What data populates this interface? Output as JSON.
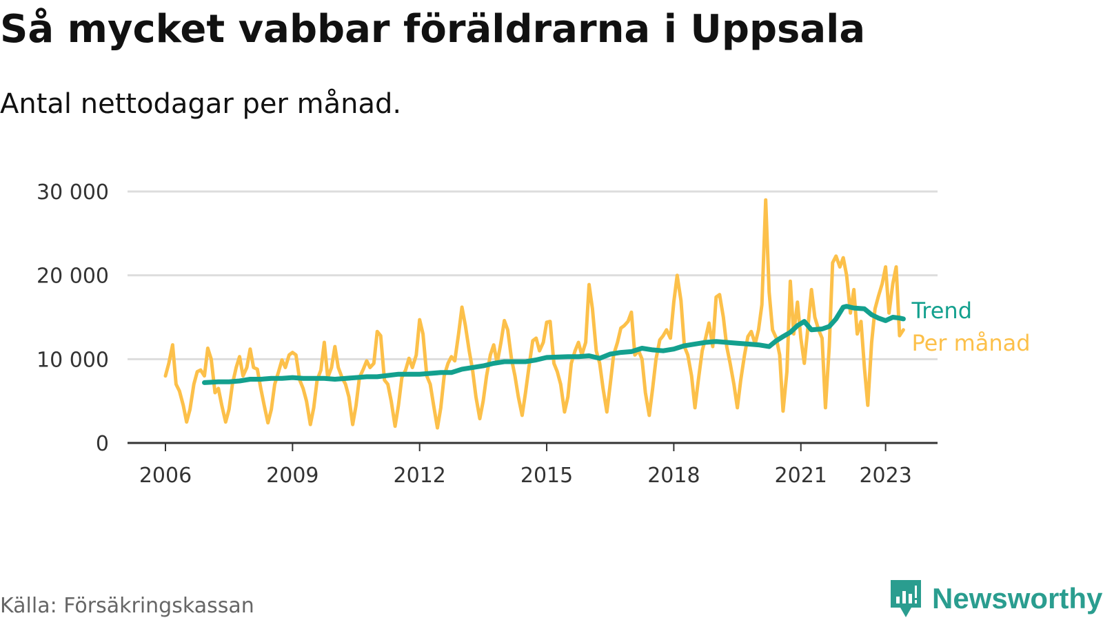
{
  "title": "Så mycket vabbar föräldrarna i Uppsala",
  "subtitle": "Antal nettodagar per månad.",
  "source": "Källa: Försäkringskassan",
  "brand": "Newsworthy",
  "chart_data": {
    "type": "line",
    "title": "Så mycket vabbar föräldrarna i Uppsala",
    "subtitle": "Antal nettodagar per månad.",
    "xlabel": "",
    "ylabel": "",
    "xlim": [
      2006,
      2024.3
    ],
    "ylim": [
      0,
      30000
    ],
    "y_ticks": [
      0,
      10000,
      20000,
      30000
    ],
    "y_tick_labels": [
      "0",
      "10 000",
      "20 000",
      "30 000"
    ],
    "x_ticks": [
      2006,
      2009,
      2012,
      2015,
      2018,
      2021,
      2023
    ],
    "x_tick_labels": [
      "2006",
      "2009",
      "2012",
      "2015",
      "2018",
      "2021",
      "2023"
    ],
    "grid": true,
    "colors": {
      "per_manad": "#fcc04a",
      "trend": "#13a08e",
      "grid": "#dddddd",
      "axis": "#333333"
    },
    "series": [
      {
        "name": "Per månad",
        "color": "#fcc04a",
        "x": [
          2006.0,
          2006.08,
          2006.17,
          2006.25,
          2006.33,
          2006.42,
          2006.5,
          2006.58,
          2006.67,
          2006.75,
          2006.83,
          2006.92,
          2007.0,
          2007.08,
          2007.17,
          2007.25,
          2007.33,
          2007.42,
          2007.5,
          2007.58,
          2007.67,
          2007.75,
          2007.83,
          2007.92,
          2008.0,
          2008.08,
          2008.17,
          2008.25,
          2008.33,
          2008.42,
          2008.5,
          2008.58,
          2008.67,
          2008.75,
          2008.83,
          2008.92,
          2009.0,
          2009.08,
          2009.17,
          2009.25,
          2009.33,
          2009.42,
          2009.5,
          2009.58,
          2009.67,
          2009.75,
          2009.83,
          2009.92,
          2010.0,
          2010.08,
          2010.17,
          2010.25,
          2010.33,
          2010.42,
          2010.5,
          2010.58,
          2010.67,
          2010.75,
          2010.83,
          2010.92,
          2011.0,
          2011.08,
          2011.17,
          2011.25,
          2011.33,
          2011.42,
          2011.5,
          2011.58,
          2011.67,
          2011.75,
          2011.83,
          2011.92,
          2012.0,
          2012.08,
          2012.17,
          2012.25,
          2012.33,
          2012.42,
          2012.5,
          2012.58,
          2012.67,
          2012.75,
          2012.83,
          2012.92,
          2013.0,
          2013.08,
          2013.17,
          2013.25,
          2013.33,
          2013.42,
          2013.5,
          2013.58,
          2013.67,
          2013.75,
          2013.83,
          2013.92,
          2014.0,
          2014.08,
          2014.17,
          2014.25,
          2014.33,
          2014.42,
          2014.5,
          2014.58,
          2014.67,
          2014.75,
          2014.83,
          2014.92,
          2015.0,
          2015.08,
          2015.17,
          2015.25,
          2015.33,
          2015.42,
          2015.5,
          2015.58,
          2015.67,
          2015.75,
          2015.83,
          2015.92,
          2016.0,
          2016.08,
          2016.17,
          2016.25,
          2016.33,
          2016.42,
          2016.5,
          2016.58,
          2016.67,
          2016.75,
          2016.83,
          2016.92,
          2017.0,
          2017.08,
          2017.17,
          2017.25,
          2017.33,
          2017.42,
          2017.5,
          2017.58,
          2017.67,
          2017.75,
          2017.83,
          2017.92,
          2018.0,
          2018.08,
          2018.17,
          2018.25,
          2018.33,
          2018.42,
          2018.5,
          2018.58,
          2018.67,
          2018.75,
          2018.83,
          2018.92,
          2019.0,
          2019.08,
          2019.17,
          2019.25,
          2019.33,
          2019.42,
          2019.5,
          2019.58,
          2019.67,
          2019.75,
          2019.83,
          2019.92,
          2020.0,
          2020.08,
          2020.17,
          2020.25,
          2020.33,
          2020.42,
          2020.5,
          2020.58,
          2020.67,
          2020.75,
          2020.83,
          2020.92,
          2021.0,
          2021.08,
          2021.17,
          2021.25,
          2021.33,
          2021.42,
          2021.5,
          2021.58,
          2021.67,
          2021.75,
          2021.83,
          2021.92,
          2022.0,
          2022.08,
          2022.17,
          2022.25,
          2022.33,
          2022.42,
          2022.5,
          2022.58,
          2022.67,
          2022.75,
          2022.83,
          2022.92,
          2023.0,
          2023.08,
          2023.17,
          2023.25,
          2023.33,
          2023.42
        ],
        "values": [
          8000,
          9500,
          11700,
          7000,
          6200,
          4500,
          2500,
          4000,
          7000,
          8500,
          8700,
          8000,
          11300,
          10000,
          6000,
          6500,
          4500,
          2500,
          4000,
          7000,
          9000,
          10300,
          8000,
          9000,
          11200,
          9000,
          8800,
          6500,
          4500,
          2400,
          4000,
          7000,
          8500,
          9900,
          9000,
          10500,
          10800,
          10500,
          7500,
          6500,
          5000,
          2200,
          4200,
          7500,
          8700,
          12000,
          7800,
          9000,
          11500,
          9000,
          7800,
          7000,
          5500,
          2200,
          4500,
          7800,
          8800,
          9800,
          9000,
          9500,
          13300,
          12800,
          7500,
          7000,
          5000,
          2000,
          4500,
          7800,
          8700,
          10100,
          9000,
          10500,
          14700,
          13000,
          8000,
          7000,
          4500,
          1800,
          4200,
          8000,
          9500,
          10300,
          9800,
          13000,
          16200,
          14000,
          11000,
          8700,
          5500,
          2900,
          5000,
          8000,
          10500,
          11700,
          9500,
          12000,
          14600,
          13500,
          10000,
          8000,
          5500,
          3300,
          6000,
          9000,
          12200,
          12500,
          11000,
          12000,
          14400,
          14500,
          9500,
          8500,
          7000,
          3700,
          5500,
          9500,
          11000,
          12000,
          10500,
          12000,
          18900,
          16000,
          11000,
          9500,
          6500,
          3700,
          7000,
          10500,
          12000,
          13700,
          14000,
          14500,
          15600,
          10500,
          11000,
          10000,
          6000,
          3300,
          6500,
          10000,
          12300,
          12800,
          13500,
          12500,
          16800,
          20000,
          17000,
          11500,
          10500,
          8000,
          4200,
          7500,
          11000,
          12500,
          14300,
          11500,
          17400,
          17700,
          15000,
          11500,
          9500,
          7000,
          4200,
          7500,
          10500,
          12700,
          13300,
          11800,
          13500,
          16500,
          29000,
          18000,
          13500,
          12500,
          10500,
          3800,
          8500,
          19300,
          13000,
          16800,
          12500,
          9500,
          14000,
          18300,
          15000,
          13500,
          12500,
          4200,
          11500,
          21500,
          22300,
          21000,
          22100,
          20000,
          15500,
          18300,
          13000,
          14500,
          9000,
          4500,
          12000,
          16000,
          17500,
          19000,
          21000,
          15500,
          19000,
          21000,
          12800,
          13500
        ]
      },
      {
        "name": "Trend",
        "color": "#13a08e",
        "x": [
          2006.92,
          2007.25,
          2007.5,
          2007.75,
          2008.0,
          2008.25,
          2008.5,
          2008.75,
          2009.0,
          2009.25,
          2009.5,
          2009.75,
          2010.0,
          2010.5,
          2010.75,
          2011.0,
          2011.5,
          2012.0,
          2012.5,
          2012.75,
          2013.0,
          2013.5,
          2013.75,
          2014.0,
          2014.5,
          2014.75,
          2015.0,
          2015.5,
          2015.75,
          2016.0,
          2016.25,
          2016.5,
          2016.75,
          2017.0,
          2017.25,
          2017.5,
          2017.75,
          2018.0,
          2018.25,
          2018.5,
          2018.75,
          2019.0,
          2019.25,
          2019.5,
          2019.75,
          2020.0,
          2020.25,
          2020.42,
          2020.58,
          2020.75,
          2020.92,
          2021.08,
          2021.25,
          2021.5,
          2021.67,
          2021.83,
          2022.0,
          2022.08,
          2022.25,
          2022.5,
          2022.67,
          2022.83,
          2023.0,
          2023.17,
          2023.33,
          2023.42
        ],
        "values": [
          7200,
          7300,
          7300,
          7400,
          7600,
          7600,
          7700,
          7700,
          7800,
          7700,
          7700,
          7700,
          7600,
          7800,
          7900,
          7900,
          8200,
          8200,
          8400,
          8400,
          8800,
          9200,
          9500,
          9700,
          9700,
          9900,
          10200,
          10300,
          10300,
          10400,
          10100,
          10600,
          10800,
          10900,
          11300,
          11100,
          11000,
          11200,
          11600,
          11800,
          12000,
          12100,
          12000,
          11900,
          11800,
          11700,
          11500,
          12200,
          12700,
          13200,
          14000,
          14500,
          13500,
          13600,
          13900,
          14800,
          16200,
          16300,
          16100,
          16000,
          15300,
          14900,
          14600,
          15000,
          14900,
          14800
        ]
      }
    ],
    "line_labels": [
      {
        "series": "Trend",
        "text": "Trend",
        "color": "#13a08e"
      },
      {
        "series": "Per månad",
        "text": "Per månad",
        "color": "#fcc04a"
      }
    ]
  }
}
